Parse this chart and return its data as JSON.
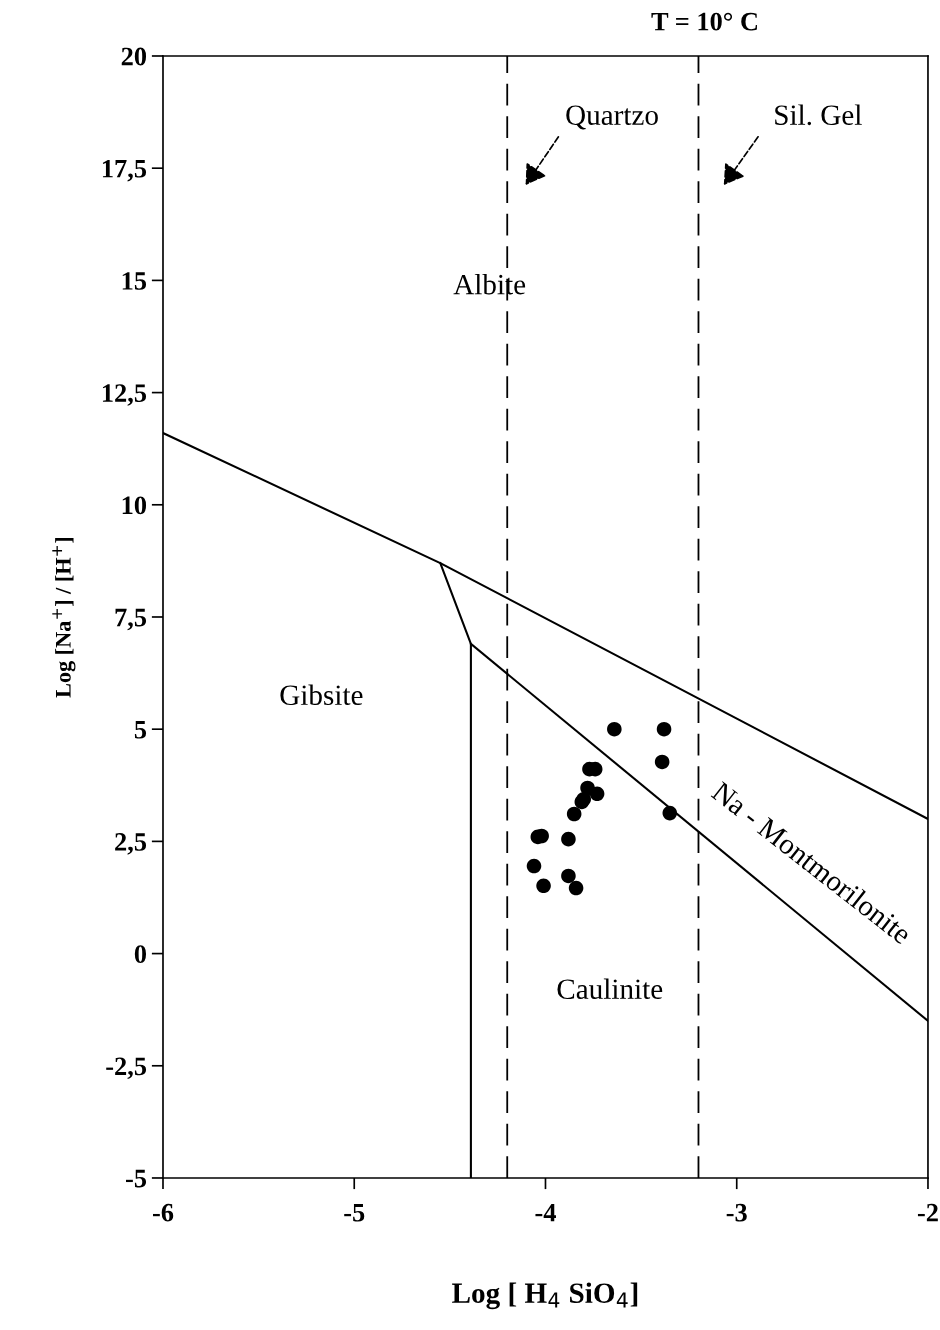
{
  "chart_data": {
    "type": "scatter",
    "title": "T = 10° C",
    "xlabel": "Log [ H$_{4}$ SiO$_{4}$]",
    "ylabel": "Log [Na$^{+}$] / [H$^{+}$]",
    "xlim": [
      -6,
      -2
    ],
    "ylim": [
      -5,
      20
    ],
    "xticks": [
      -6,
      -5,
      -4,
      -3,
      -2
    ],
    "yticks": [
      {
        "value": -5,
        "label": "-5"
      },
      {
        "value": -2.5,
        "label": "-2,5"
      },
      0,
      {
        "value": 2.5,
        "label": "2,5"
      },
      5,
      {
        "value": 7.5,
        "label": "7,5"
      },
      10,
      {
        "value": 12.5,
        "label": "12,5"
      },
      15,
      {
        "value": 17.5,
        "label": "17,5"
      },
      20
    ],
    "grid": false,
    "series": [
      {
        "color": "#000000",
        "marker": "circle",
        "x": [
          -3.64,
          -3.38,
          -3.39,
          -3.77,
          -3.74,
          -3.78,
          -3.73,
          -3.81,
          -3.8,
          -3.85,
          -3.35,
          -4.04,
          -4.02,
          -3.88,
          -4.06,
          -3.88,
          -4.01,
          -3.84
        ],
        "values": [
          5.0,
          5.0,
          4.27,
          4.11,
          4.11,
          3.69,
          3.56,
          3.38,
          3.44,
          3.11,
          3.13,
          2.6,
          2.62,
          2.55,
          1.95,
          1.73,
          1.51,
          1.46
        ]
      },
      {
        "type": "line",
        "color": "#000000",
        "marker": "none",
        "line_style": "solid",
        "x": [
          -6,
          -4.55,
          -2
        ],
        "values": [
          11.6,
          8.7,
          3.0
        ]
      },
      {
        "type": "line",
        "color": "#000000",
        "marker": "none",
        "line_style": "solid",
        "x": [
          -4.55,
          -4.39,
          -4.39
        ],
        "values": [
          8.7,
          6.9,
          -5
        ]
      },
      {
        "type": "line",
        "color": "#000000",
        "marker": "none",
        "line_style": "solid",
        "x": [
          -4.39,
          -2
        ],
        "values": [
          6.9,
          -1.5
        ]
      }
    ],
    "ref_lines": [
      {
        "axis": "x",
        "value": -4.2,
        "line_style": "dashed",
        "color": "#000000"
      },
      {
        "axis": "x",
        "value": -3.2,
        "line_style": "dashed",
        "color": "#000000"
      }
    ],
    "annotations": [
      "Quartzo",
      "Sil. Gel",
      "Albite",
      "Gibsite",
      "Caulinite",
      "Na - Montmorilonite"
    ]
  }
}
